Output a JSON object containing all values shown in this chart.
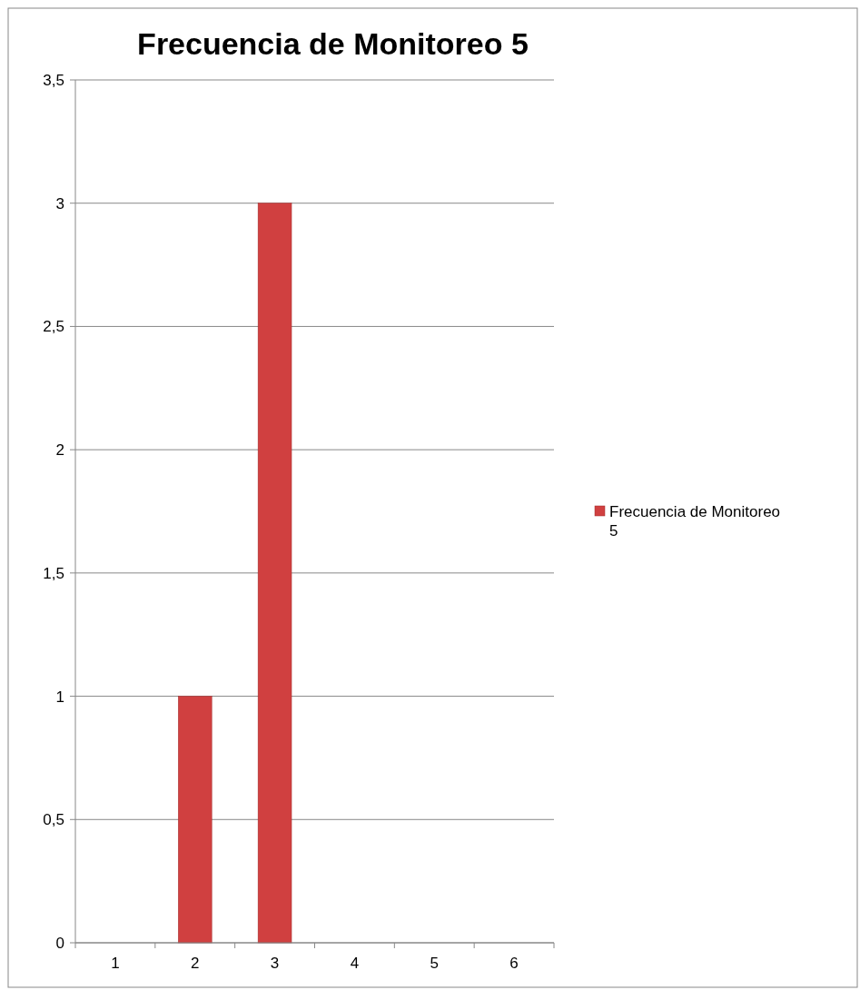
{
  "chart_data": {
    "type": "bar",
    "title": "Frecuencia de Monitoreo 5",
    "categories": [
      "1",
      "2",
      "3",
      "4",
      "5",
      "6"
    ],
    "series": [
      {
        "name": "Frecuencia de Monitoreo 5",
        "color": "#d04040",
        "values": [
          0,
          1,
          3,
          0,
          0,
          0
        ]
      }
    ],
    "ylim": [
      0,
      3.5
    ],
    "yticks": [
      0,
      {
        "value": 0.5,
        "label": "0,5"
      },
      1,
      {
        "value": 1.5,
        "label": "1,5"
      },
      2,
      {
        "value": 2.5,
        "label": "2,5"
      },
      3,
      {
        "value": 3.5,
        "label": "3,5"
      }
    ],
    "grid": "y",
    "legend": "right"
  }
}
